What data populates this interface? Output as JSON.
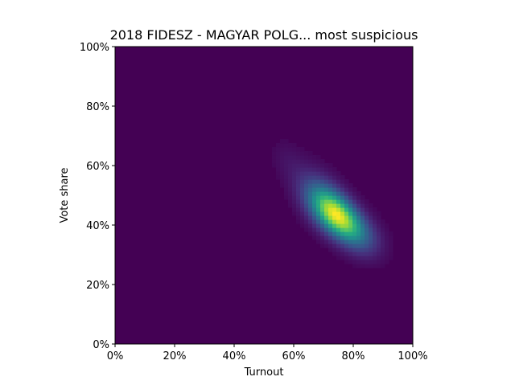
{
  "chart_data": {
    "type": "heatmap",
    "title": "2018 FIDESZ - MAGYAR POLG... most suspicious",
    "xlabel": "Turnout",
    "ylabel": "Vote share",
    "xlim": [
      0,
      1
    ],
    "ylim": [
      0,
      1
    ],
    "x_tick_labels": [
      "0%",
      "20%",
      "40%",
      "60%",
      "80%",
      "100%"
    ],
    "y_tick_labels": [
      "0%",
      "20%",
      "40%",
      "60%",
      "80%",
      "100%"
    ],
    "x_ticks": [
      0,
      0.2,
      0.4,
      0.6,
      0.8,
      1.0
    ],
    "y_ticks": [
      0,
      0.2,
      0.4,
      0.6,
      0.8,
      1.0
    ],
    "colormap": "viridis",
    "background_color": "#440154",
    "grid": false,
    "legend": "none",
    "density_components": [
      {
        "cx": 0.75,
        "cy": 0.43,
        "sx": 0.055,
        "sy": 0.055,
        "rho": -0.55,
        "weight": 1.0
      },
      {
        "cx": 0.7,
        "cy": 0.48,
        "sx": 0.06,
        "sy": 0.07,
        "rho": -0.5,
        "weight": 0.35
      },
      {
        "cx": 0.83,
        "cy": 0.36,
        "sx": 0.05,
        "sy": 0.05,
        "rho": -0.3,
        "weight": 0.2
      },
      {
        "cx": 0.58,
        "cy": 0.62,
        "sx": 0.04,
        "sy": 0.05,
        "rho": -0.3,
        "weight": 0.05
      }
    ],
    "peak": {
      "x": 0.75,
      "y": 0.43
    }
  }
}
